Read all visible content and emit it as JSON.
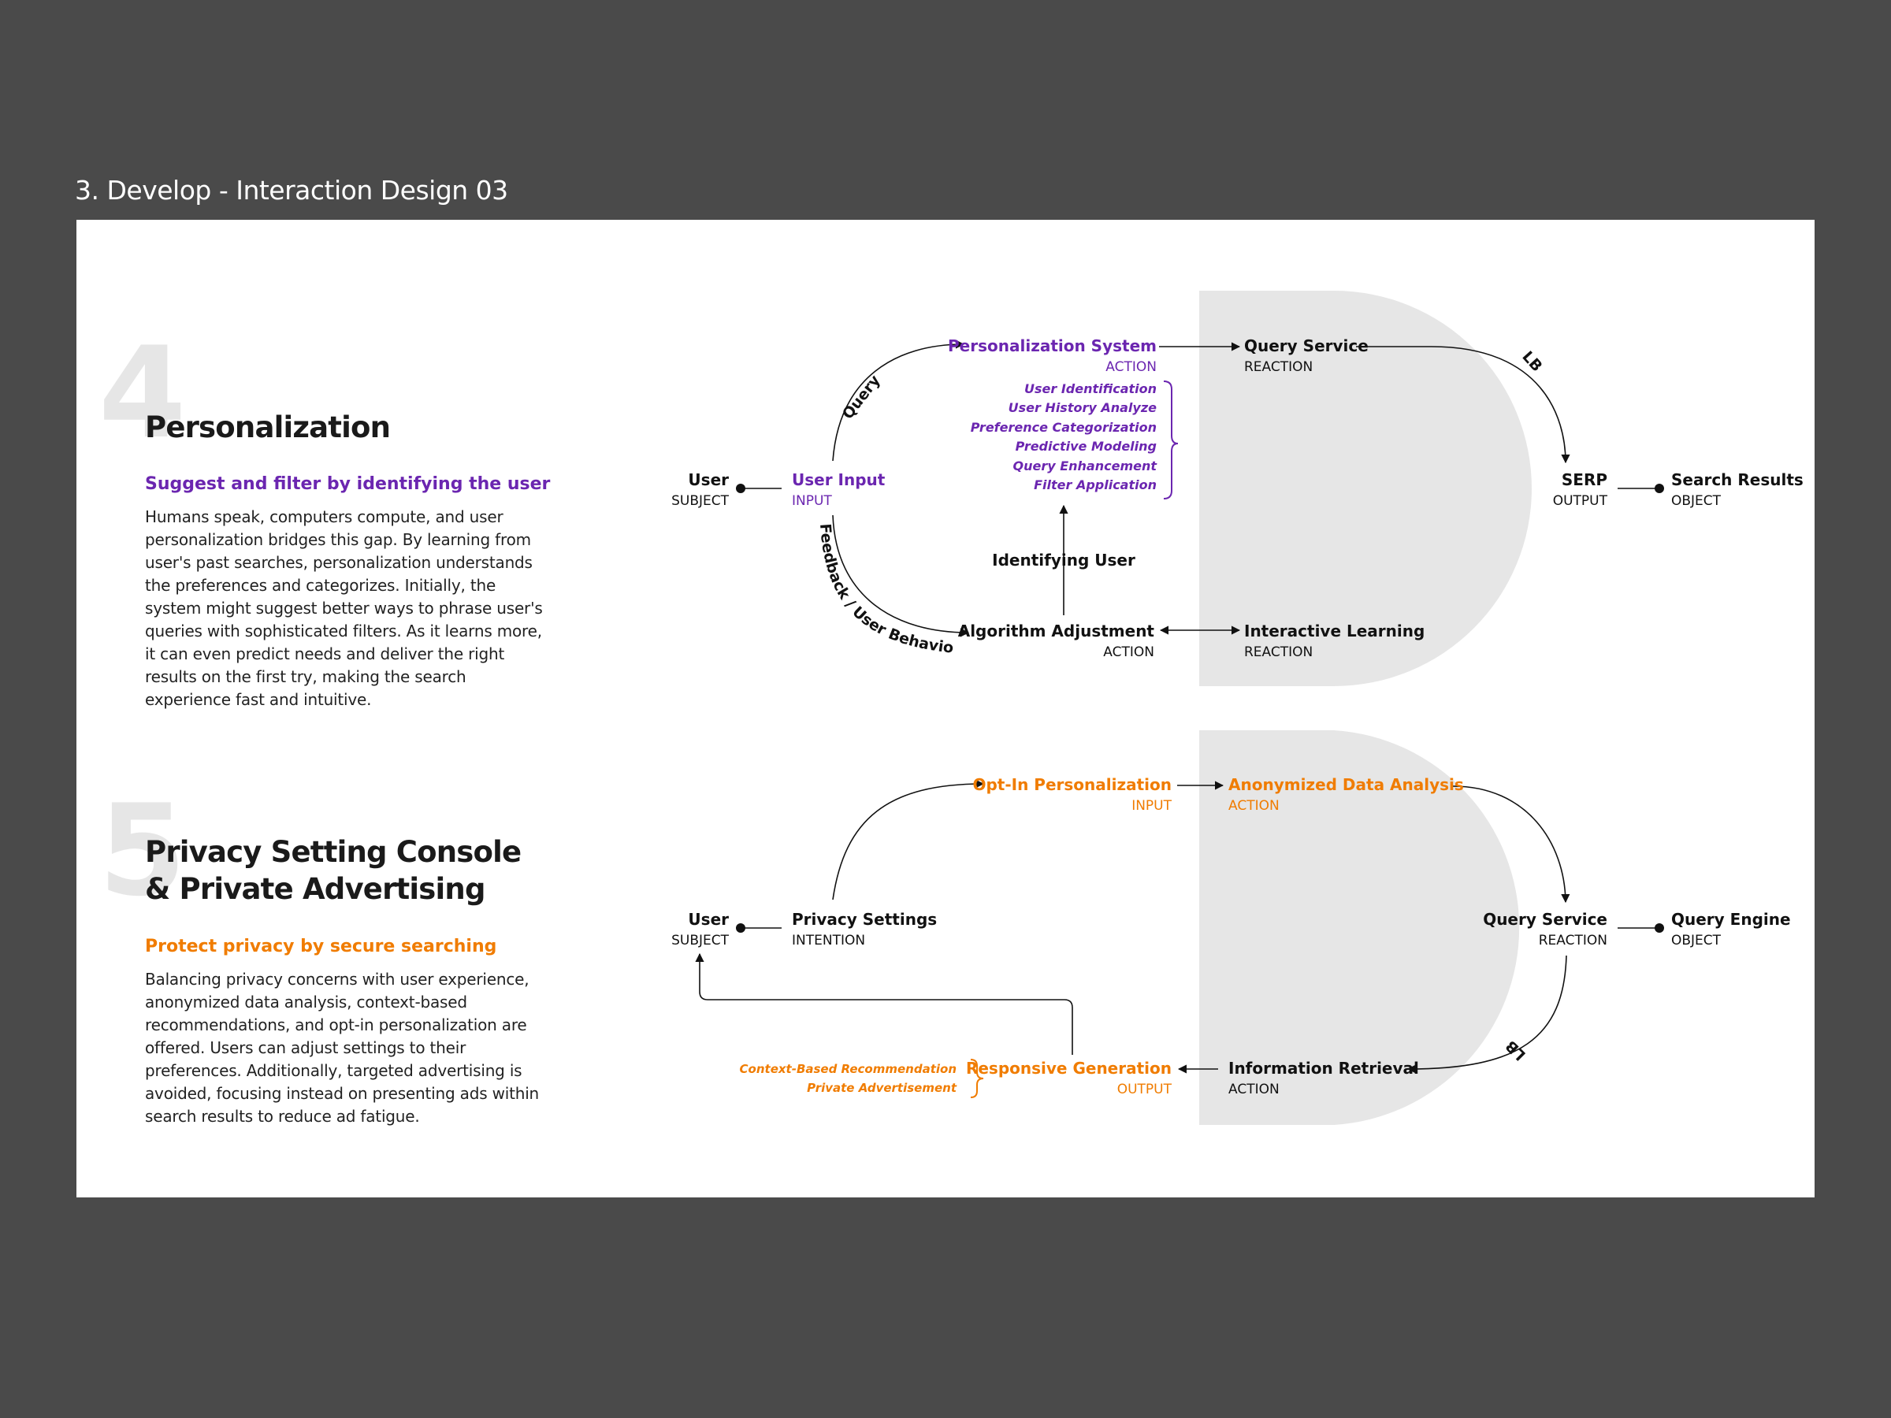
{
  "page": {
    "title": "3. Develop - Interaction Design 03"
  },
  "colors": {
    "purple": "#6b26b0",
    "orange": "#f07c00",
    "panel": "#e6e6e6",
    "background": "#4a4a4a"
  },
  "sections": [
    {
      "number": "4",
      "title_lines": [
        "Personalization"
      ],
      "subtitle": "Suggest and filter by identifying the user",
      "body": "Humans speak, computers compute, and user personalization bridges this gap. By learning from user's past searches, personalization understands the preferences and categorizes. Initially, the system might suggest better ways to phrase user's queries with sophisticated filters. As it learns more, it can even predict needs and deliver the right results on the first try, making the search experience fast and intuitive."
    },
    {
      "number": "5",
      "title_lines": [
        "Privacy Setting Console",
        "& Private Advertising"
      ],
      "subtitle": "Protect privacy by secure searching",
      "body": "Balancing privacy concerns with user experience, anonymized data analysis, context-based recommendations, and opt-in personalization are offered. Users can adjust settings to their preferences. Additionally, targeted advertising is avoided, focusing instead on presenting ads within search results to reduce ad fatigue."
    }
  ],
  "diagram1": {
    "user": {
      "title": "User",
      "role": "SUBJECT"
    },
    "user_input": {
      "title": "User Input",
      "role": "INPUT"
    },
    "personalization_system": {
      "title": "Personalization System",
      "role": "ACTION"
    },
    "functions": [
      "User Identification",
      "User History Analyze",
      "Preference Categorization",
      "Predictive Modeling",
      "Query Enhancement",
      "Filter Application"
    ],
    "identifying_user": "Identifying User",
    "algorithm_adjustment": {
      "title": "Algorithm Adjustment",
      "role": "ACTION"
    },
    "query_service": {
      "title": "Query Service",
      "role": "REACTION"
    },
    "interactive_learning": {
      "title": "Interactive Learning",
      "role": "REACTION"
    },
    "serp": {
      "title": "SERP",
      "role": "OUTPUT"
    },
    "search_results": {
      "title": "Search Results",
      "role": "OBJECT"
    },
    "edge_query": "Query",
    "edge_feedback": "Feedback / User Behavior",
    "edge_lb": "LB"
  },
  "diagram2": {
    "user": {
      "title": "User",
      "role": "SUBJECT"
    },
    "privacy_settings": {
      "title": "Privacy Settings",
      "role": "INTENTION"
    },
    "opt_in": {
      "title": "Opt-In Personalization",
      "role": "INPUT"
    },
    "anonymized": {
      "title": "Anonymized Data Analysis",
      "role": "ACTION"
    },
    "query_service": {
      "title": "Query Service",
      "role": "REACTION"
    },
    "query_engine": {
      "title": "Query Engine",
      "role": "OBJECT"
    },
    "information_retrieval": {
      "title": "Information Retrieval",
      "role": "ACTION"
    },
    "responsive_generation": {
      "title": "Responsive Generation",
      "role": "OUTPUT"
    },
    "outputs": [
      "Context-Based Recommendation",
      "Private Advertisement"
    ],
    "edge_lb": "LB"
  }
}
